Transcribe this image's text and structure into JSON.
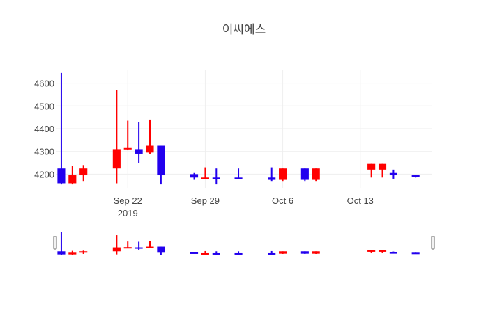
{
  "chart_data": {
    "type": "candlestick",
    "title": "이씨에스",
    "increasing_color": "#ff0000",
    "decreasing_color": "#2200ee",
    "ylim": [
      4140,
      4660
    ],
    "yticks": [
      4200,
      4300,
      4400,
      4500,
      4600
    ],
    "xrange": [
      "2019-09-16",
      "2019-10-19"
    ],
    "xticks": [
      {
        "date": "2019-09-22",
        "label": "Sep 22",
        "sublabel": "2019"
      },
      {
        "date": "2019-09-29",
        "label": "Sep 29",
        "sublabel": ""
      },
      {
        "date": "2019-10-06",
        "label": "Oct 6",
        "sublabel": ""
      },
      {
        "date": "2019-10-13",
        "label": "Oct 13",
        "sublabel": ""
      }
    ],
    "candles": [
      {
        "date": "2019-09-16",
        "open": 4225,
        "high": 4645,
        "low": 4155,
        "close": 4160
      },
      {
        "date": "2019-09-17",
        "open": 4160,
        "high": 4235,
        "low": 4155,
        "close": 4195
      },
      {
        "date": "2019-09-18",
        "open": 4195,
        "high": 4240,
        "low": 4170,
        "close": 4225
      },
      {
        "date": "2019-09-21",
        "open": 4225,
        "high": 4570,
        "low": 4160,
        "close": 4310
      },
      {
        "date": "2019-09-22",
        "open": 4310,
        "high": 4435,
        "low": 4305,
        "close": 4315
      },
      {
        "date": "2019-09-23",
        "open": 4310,
        "high": 4430,
        "low": 4250,
        "close": 4290
      },
      {
        "date": "2019-09-24",
        "open": 4295,
        "high": 4440,
        "low": 4290,
        "close": 4325
      },
      {
        "date": "2019-09-25",
        "open": 4325,
        "high": 4325,
        "low": 4155,
        "close": 4195
      },
      {
        "date": "2019-09-28",
        "open": 4200,
        "high": 4205,
        "low": 4175,
        "close": 4185
      },
      {
        "date": "2019-09-29",
        "open": 4185,
        "high": 4230,
        "low": 4180,
        "close": 4185
      },
      {
        "date": "2019-09-30",
        "open": 4185,
        "high": 4225,
        "low": 4155,
        "close": 4180
      },
      {
        "date": "2019-10-02",
        "open": 4185,
        "high": 4225,
        "low": 4180,
        "close": 4183
      },
      {
        "date": "2019-10-05",
        "open": 4185,
        "high": 4230,
        "low": 4170,
        "close": 4175
      },
      {
        "date": "2019-10-06",
        "open": 4175,
        "high": 4225,
        "low": 4170,
        "close": 4225
      },
      {
        "date": "2019-10-08",
        "open": 4225,
        "high": 4225,
        "low": 4170,
        "close": 4175
      },
      {
        "date": "2019-10-09",
        "open": 4175,
        "high": 4225,
        "low": 4170,
        "close": 4225
      },
      {
        "date": "2019-10-14",
        "open": 4220,
        "high": 4245,
        "low": 4185,
        "close": 4245
      },
      {
        "date": "2019-10-15",
        "open": 4220,
        "high": 4245,
        "low": 4185,
        "close": 4245
      },
      {
        "date": "2019-10-16",
        "open": 4205,
        "high": 4220,
        "low": 4180,
        "close": 4195
      },
      {
        "date": "2019-10-18",
        "open": 4195,
        "high": 4195,
        "low": 4185,
        "close": 4190
      }
    ]
  }
}
